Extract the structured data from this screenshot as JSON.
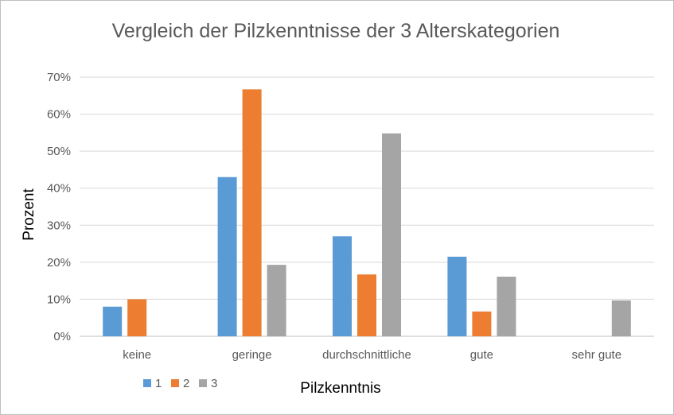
{
  "chart_data": {
    "type": "bar",
    "title": "Vergleich der Pilzkenntnisse der 3 Alterskategorien",
    "xlabel": "Pilzkenntnis",
    "ylabel": "Prozent",
    "categories": [
      "keine",
      "geringe",
      "durchschnittliche",
      "gute",
      "sehr gute"
    ],
    "series": [
      {
        "name": "1",
        "color": "#5b9bd5",
        "values": [
          8,
          43,
          27,
          21.5,
          0
        ]
      },
      {
        "name": "2",
        "color": "#ed7d31",
        "values": [
          10,
          66.7,
          16.7,
          6.7,
          0
        ]
      },
      {
        "name": "3",
        "color": "#a5a5a5",
        "values": [
          0,
          19.3,
          54.8,
          16.1,
          9.7
        ]
      }
    ],
    "ylim": [
      0,
      70
    ],
    "yticks": [
      "0%",
      "10%",
      "20%",
      "30%",
      "40%",
      "50%",
      "60%",
      "70%"
    ],
    "grid": true,
    "legend_position": "bottom-left"
  }
}
